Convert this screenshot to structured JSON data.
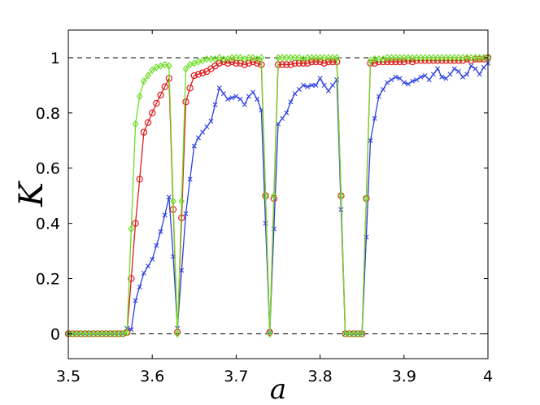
{
  "chart_data": {
    "type": "line",
    "xlabel": "a",
    "ylabel": "K",
    "xlim": [
      3.5,
      4.0
    ],
    "ylim": [
      -0.09,
      1.1
    ],
    "x_ticks": [
      "3.5",
      "3.6",
      "3.7",
      "3.8",
      "3.9",
      "4"
    ],
    "y_ticks": [
      "0",
      "0.2",
      "0.4",
      "0.6",
      "0.8",
      "1"
    ],
    "grid": false,
    "reference_lines": [
      0,
      1
    ],
    "colors": {
      "blue": "#2b3fe0",
      "red": "#e01b1b",
      "green": "#6fdd2a",
      "reference": "#000000"
    },
    "series": [
      {
        "marker": "x",
        "color": "#2b3fe0",
        "x": [
          3.5,
          3.505,
          3.51,
          3.515,
          3.52,
          3.525,
          3.53,
          3.535,
          3.54,
          3.545,
          3.55,
          3.555,
          3.56,
          3.565,
          3.57,
          3.575,
          3.58,
          3.585,
          3.59,
          3.595,
          3.6,
          3.605,
          3.61,
          3.615,
          3.62,
          3.625,
          3.63,
          3.635,
          3.64,
          3.645,
          3.65,
          3.655,
          3.66,
          3.665,
          3.67,
          3.675,
          3.68,
          3.685,
          3.69,
          3.695,
          3.7,
          3.705,
          3.71,
          3.715,
          3.72,
          3.725,
          3.73,
          3.735,
          3.74,
          3.745,
          3.75,
          3.755,
          3.76,
          3.765,
          3.77,
          3.775,
          3.78,
          3.785,
          3.79,
          3.795,
          3.8,
          3.805,
          3.81,
          3.815,
          3.82,
          3.825,
          3.83,
          3.835,
          3.84,
          3.845,
          3.85,
          3.855,
          3.86,
          3.865,
          3.87,
          3.875,
          3.88,
          3.885,
          3.89,
          3.895,
          3.9,
          3.905,
          3.91,
          3.915,
          3.92,
          3.925,
          3.93,
          3.935,
          3.94,
          3.945,
          3.95,
          3.955,
          3.96,
          3.965,
          3.97,
          3.975,
          3.98,
          3.985,
          3.99,
          3.995,
          4.0
        ],
        "y": [
          0,
          0,
          0,
          0,
          0,
          0,
          0,
          0,
          0,
          0,
          0,
          0,
          0,
          0,
          0.02,
          0.015,
          0.12,
          0.17,
          0.22,
          0.245,
          0.27,
          0.32,
          0.37,
          0.43,
          0.495,
          0.28,
          0.02,
          0.23,
          0.435,
          0.56,
          0.68,
          0.71,
          0.73,
          0.75,
          0.77,
          0.83,
          0.89,
          0.87,
          0.85,
          0.855,
          0.86,
          0.85,
          0.83,
          0.86,
          0.875,
          0.85,
          0.81,
          0.4,
          0.005,
          0.38,
          0.76,
          0.78,
          0.8,
          0.84,
          0.87,
          0.885,
          0.9,
          0.895,
          0.9,
          0.9,
          0.925,
          0.9,
          0.88,
          0.9,
          0.92,
          0.45,
          0,
          0,
          0,
          0,
          0,
          0.35,
          0.7,
          0.78,
          0.86,
          0.885,
          0.91,
          0.92,
          0.93,
          0.925,
          0.91,
          0.905,
          0.915,
          0.92,
          0.93,
          0.935,
          0.92,
          0.94,
          0.96,
          0.93,
          0.925,
          0.94,
          0.96,
          0.95,
          0.93,
          0.94,
          0.97,
          0.96,
          0.94,
          0.965,
          0.98
        ]
      },
      {
        "marker": "o",
        "color": "#e01b1b",
        "x": [
          3.5,
          3.505,
          3.51,
          3.515,
          3.52,
          3.525,
          3.53,
          3.535,
          3.54,
          3.545,
          3.55,
          3.555,
          3.56,
          3.565,
          3.57,
          3.575,
          3.58,
          3.585,
          3.59,
          3.595,
          3.6,
          3.605,
          3.61,
          3.615,
          3.62,
          3.625,
          3.63,
          3.635,
          3.64,
          3.645,
          3.65,
          3.655,
          3.66,
          3.665,
          3.67,
          3.675,
          3.68,
          3.685,
          3.69,
          3.695,
          3.7,
          3.705,
          3.71,
          3.715,
          3.72,
          3.725,
          3.73,
          3.735,
          3.74,
          3.745,
          3.75,
          3.755,
          3.76,
          3.765,
          3.77,
          3.775,
          3.78,
          3.785,
          3.79,
          3.795,
          3.8,
          3.805,
          3.81,
          3.815,
          3.82,
          3.825,
          3.83,
          3.835,
          3.84,
          3.845,
          3.85,
          3.855,
          3.86,
          3.865,
          3.87,
          3.875,
          3.88,
          3.885,
          3.89,
          3.895,
          3.9,
          3.905,
          3.91,
          3.915,
          3.92,
          3.925,
          3.93,
          3.935,
          3.94,
          3.945,
          3.95,
          3.955,
          3.96,
          3.965,
          3.97,
          3.975,
          3.98,
          3.985,
          3.99,
          3.995,
          4.0
        ],
        "y": [
          0,
          0,
          0,
          0,
          0,
          0,
          0,
          0,
          0,
          0,
          0,
          0,
          0,
          0,
          0.005,
          0.2,
          0.4,
          0.56,
          0.73,
          0.765,
          0.8,
          0.835,
          0.865,
          0.895,
          0.925,
          0.45,
          0.005,
          0.42,
          0.84,
          0.89,
          0.935,
          0.94,
          0.945,
          0.95,
          0.96,
          0.97,
          0.98,
          0.985,
          0.98,
          0.985,
          0.98,
          0.98,
          0.975,
          0.98,
          0.985,
          0.98,
          0.975,
          0.5,
          0.005,
          0.49,
          0.975,
          0.975,
          0.975,
          0.975,
          0.98,
          0.98,
          0.98,
          0.98,
          0.985,
          0.985,
          0.985,
          0.98,
          0.985,
          0.985,
          0.985,
          0.5,
          0,
          0,
          0,
          0,
          0,
          0.49,
          0.98,
          0.98,
          0.985,
          0.985,
          0.985,
          0.985,
          0.985,
          0.985,
          0.985,
          0.99,
          0.985,
          0.99,
          0.99,
          0.99,
          0.99,
          0.99,
          0.99,
          0.99,
          0.99,
          0.99,
          0.99,
          0.99,
          0.99,
          0.995,
          0.99,
          0.995,
          0.995,
          0.995,
          1.0
        ]
      },
      {
        "marker": "d",
        "color": "#6fdd2a",
        "x": [
          3.5,
          3.505,
          3.51,
          3.515,
          3.52,
          3.525,
          3.53,
          3.535,
          3.54,
          3.545,
          3.55,
          3.555,
          3.56,
          3.565,
          3.57,
          3.575,
          3.58,
          3.585,
          3.59,
          3.595,
          3.6,
          3.605,
          3.61,
          3.615,
          3.62,
          3.625,
          3.63,
          3.635,
          3.64,
          3.645,
          3.65,
          3.655,
          3.66,
          3.665,
          3.67,
          3.675,
          3.68,
          3.685,
          3.69,
          3.695,
          3.7,
          3.705,
          3.71,
          3.715,
          3.72,
          3.725,
          3.73,
          3.735,
          3.74,
          3.745,
          3.75,
          3.755,
          3.76,
          3.765,
          3.77,
          3.775,
          3.78,
          3.785,
          3.79,
          3.795,
          3.8,
          3.805,
          3.81,
          3.815,
          3.82,
          3.825,
          3.83,
          3.835,
          3.84,
          3.845,
          3.85,
          3.855,
          3.86,
          3.865,
          3.87,
          3.875,
          3.88,
          3.885,
          3.89,
          3.895,
          3.9,
          3.905,
          3.91,
          3.915,
          3.92,
          3.925,
          3.93,
          3.935,
          3.94,
          3.945,
          3.95,
          3.955,
          3.96,
          3.965,
          3.97,
          3.975,
          3.98,
          3.985,
          3.99,
          3.995,
          4.0
        ],
        "y": [
          0,
          0,
          0,
          0,
          0,
          0,
          0,
          0,
          0,
          0,
          0,
          0,
          0,
          0,
          0.005,
          0.38,
          0.76,
          0.86,
          0.915,
          0.935,
          0.955,
          0.965,
          0.97,
          0.975,
          0.97,
          0.48,
          0,
          0.48,
          0.96,
          0.975,
          0.98,
          0.985,
          0.99,
          0.995,
          0.995,
          0.995,
          1.0,
          0.995,
          0.995,
          1.0,
          1.0,
          1.0,
          0.995,
          1.0,
          1.0,
          0.995,
          1.0,
          0.5,
          0,
          0.5,
          1.0,
          1.0,
          1.0,
          1.0,
          1.0,
          1.0,
          0.995,
          1.0,
          1.0,
          1.0,
          1.0,
          1.0,
          1.0,
          1.0,
          1.0,
          0.5,
          0,
          0,
          0,
          0,
          0,
          0.49,
          0.99,
          0.995,
          0.995,
          0.995,
          1.0,
          1.0,
          1.0,
          1.0,
          1.0,
          1.0,
          1.0,
          1.0,
          1.0,
          1.0,
          1.0,
          1.0,
          1.0,
          1.0,
          1.0,
          1.0,
          1.0,
          1.0,
          1.0,
          1.0,
          1.0,
          1.0,
          1.0,
          1.0,
          1.0
        ]
      }
    ]
  }
}
